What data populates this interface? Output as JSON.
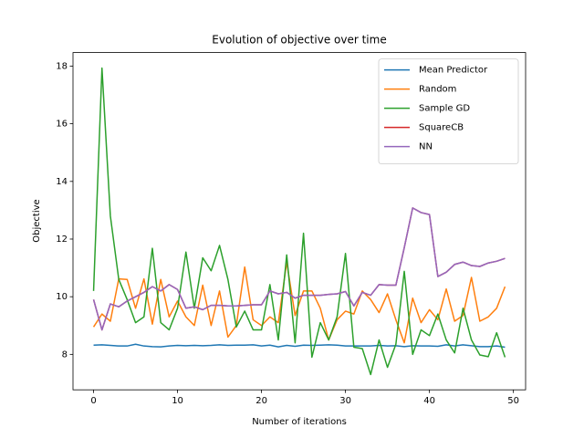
{
  "chart_data": {
    "type": "line",
    "title": "Evolution of objective over time",
    "xlabel": "Number of iterations",
    "ylabel": "Objective",
    "x": [
      0,
      1,
      2,
      3,
      4,
      5,
      6,
      7,
      8,
      9,
      10,
      11,
      12,
      13,
      14,
      15,
      16,
      17,
      18,
      19,
      20,
      21,
      22,
      23,
      24,
      25,
      26,
      27,
      28,
      29,
      30,
      31,
      32,
      33,
      34,
      35,
      36,
      37,
      38,
      39,
      40,
      41,
      42,
      43,
      44,
      45,
      46,
      47,
      48,
      49
    ],
    "xlim": [
      -2.45,
      51.45
    ],
    "xticks": [
      0,
      10,
      20,
      30,
      40,
      50
    ],
    "ylim": [
      6.77,
      18.47
    ],
    "yticks": [
      8,
      10,
      12,
      14,
      16,
      18
    ],
    "legend": "upper right",
    "series": [
      {
        "name": "Mean Predictor",
        "color": "#1f77b4",
        "values": [
          8.32,
          8.33,
          8.31,
          8.29,
          8.29,
          8.35,
          8.29,
          8.27,
          8.26,
          8.29,
          8.31,
          8.3,
          8.31,
          8.3,
          8.31,
          8.33,
          8.31,
          8.32,
          8.32,
          8.33,
          8.29,
          8.32,
          8.26,
          8.31,
          8.28,
          8.32,
          8.31,
          8.32,
          8.33,
          8.32,
          8.29,
          8.29,
          8.29,
          8.29,
          8.31,
          8.29,
          8.3,
          8.27,
          8.3,
          8.29,
          8.29,
          8.28,
          8.33,
          8.29,
          8.33,
          8.3,
          8.27,
          8.27,
          8.29,
          8.25
        ]
      },
      {
        "name": "Random",
        "color": "#ff7f0e",
        "values": [
          8.95,
          9.4,
          9.15,
          10.62,
          10.6,
          9.6,
          10.62,
          9.05,
          10.6,
          9.3,
          9.85,
          9.3,
          9.0,
          10.4,
          9.0,
          10.2,
          8.6,
          9.0,
          11.03,
          9.2,
          9.0,
          9.3,
          9.1,
          11.2,
          9.35,
          10.2,
          10.2,
          9.6,
          8.5,
          9.2,
          9.5,
          9.4,
          10.2,
          9.9,
          9.45,
          10.1,
          9.2,
          8.4,
          9.95,
          9.1,
          9.55,
          9.2,
          10.27,
          9.15,
          9.35,
          10.67,
          9.15,
          9.3,
          9.6,
          10.35
        ]
      },
      {
        "name": "Sample GD",
        "color": "#2ca02c",
        "values": [
          10.2,
          17.93,
          12.8,
          10.6,
          9.9,
          9.1,
          9.3,
          11.68,
          9.1,
          8.85,
          9.6,
          11.55,
          9.6,
          11.35,
          10.9,
          11.78,
          10.6,
          8.95,
          9.5,
          8.85,
          8.85,
          10.42,
          8.5,
          11.45,
          8.4,
          12.2,
          7.9,
          9.1,
          8.5,
          9.3,
          11.5,
          8.25,
          8.2,
          7.3,
          8.5,
          7.55,
          8.35,
          10.88,
          8.0,
          8.85,
          8.65,
          9.4,
          8.5,
          8.05,
          9.6,
          8.5,
          7.98,
          7.92,
          8.75,
          7.9
        ]
      },
      {
        "name": "SquareCB",
        "color": "#d62728",
        "values": [
          9.9,
          8.85,
          9.75,
          9.65,
          9.85,
          10.0,
          10.15,
          10.35,
          10.2,
          10.42,
          10.25,
          9.6,
          9.65,
          9.55,
          9.7,
          9.7,
          9.68,
          9.68,
          9.7,
          9.72,
          9.72,
          10.2,
          10.1,
          10.15,
          9.95,
          10.05,
          10.05,
          10.05,
          10.08,
          10.1,
          10.18,
          9.68,
          10.15,
          10.05,
          10.42,
          10.4,
          10.4,
          11.7,
          13.08,
          12.92,
          12.85,
          10.7,
          10.85,
          11.12,
          11.2,
          11.08,
          11.05,
          11.17,
          11.23,
          11.33
        ]
      },
      {
        "name": "NN",
        "color": "#9467bd",
        "values": [
          9.9,
          8.85,
          9.75,
          9.65,
          9.85,
          10.0,
          10.15,
          10.35,
          10.2,
          10.42,
          10.25,
          9.6,
          9.65,
          9.55,
          9.7,
          9.7,
          9.68,
          9.68,
          9.7,
          9.72,
          9.72,
          10.2,
          10.1,
          10.15,
          9.95,
          10.05,
          10.05,
          10.05,
          10.08,
          10.1,
          10.18,
          9.68,
          10.15,
          10.05,
          10.42,
          10.4,
          10.4,
          11.7,
          13.08,
          12.92,
          12.85,
          10.7,
          10.85,
          11.12,
          11.2,
          11.08,
          11.05,
          11.17,
          11.23,
          11.33
        ]
      }
    ]
  }
}
